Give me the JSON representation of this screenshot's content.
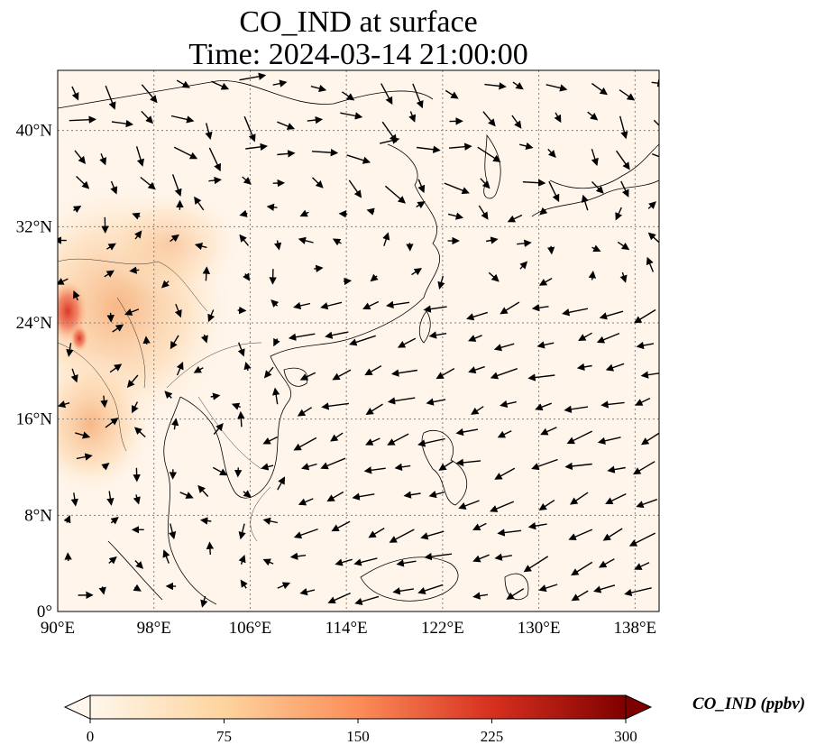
{
  "title": {
    "line1": "CO_IND at surface",
    "line2": "Time: 2024-03-14 21:00:00"
  },
  "map": {
    "lon_range": [
      90,
      140
    ],
    "lat_range": [
      0,
      45
    ],
    "lon_ticks": [
      {
        "value": 90,
        "label": "90°E"
      },
      {
        "value": 98,
        "label": "98°E"
      },
      {
        "value": 106,
        "label": "106°E"
      },
      {
        "value": 114,
        "label": "114°E"
      },
      {
        "value": 122,
        "label": "122°E"
      },
      {
        "value": 130,
        "label": "130°E"
      },
      {
        "value": 138,
        "label": "138°E"
      }
    ],
    "lat_ticks": [
      {
        "value": 0,
        "label": "0°"
      },
      {
        "value": 8,
        "label": "8°N"
      },
      {
        "value": 16,
        "label": "16°N"
      },
      {
        "value": 24,
        "label": "24°N"
      },
      {
        "value": 32,
        "label": "32°N"
      },
      {
        "value": 40,
        "label": "40°N"
      }
    ],
    "gridlines": "dotted",
    "features": [
      "coastlines",
      "country borders",
      "wind vectors"
    ]
  },
  "colorbar": {
    "label": "CO_IND (ppbv)",
    "colormap": "OrRd",
    "extend": "both",
    "range": [
      0,
      300
    ],
    "ticks": [
      {
        "value": 0,
        "label": "0"
      },
      {
        "value": 75,
        "label": "75"
      },
      {
        "value": 150,
        "label": "150"
      },
      {
        "value": 225,
        "label": "225"
      },
      {
        "value": 300,
        "label": "300"
      }
    ]
  },
  "colors": {
    "background": "#fff5ea",
    "low": "#fdd49e",
    "mid": "#fc8d59",
    "high": "#d7301f",
    "max": "#7f0000"
  }
}
